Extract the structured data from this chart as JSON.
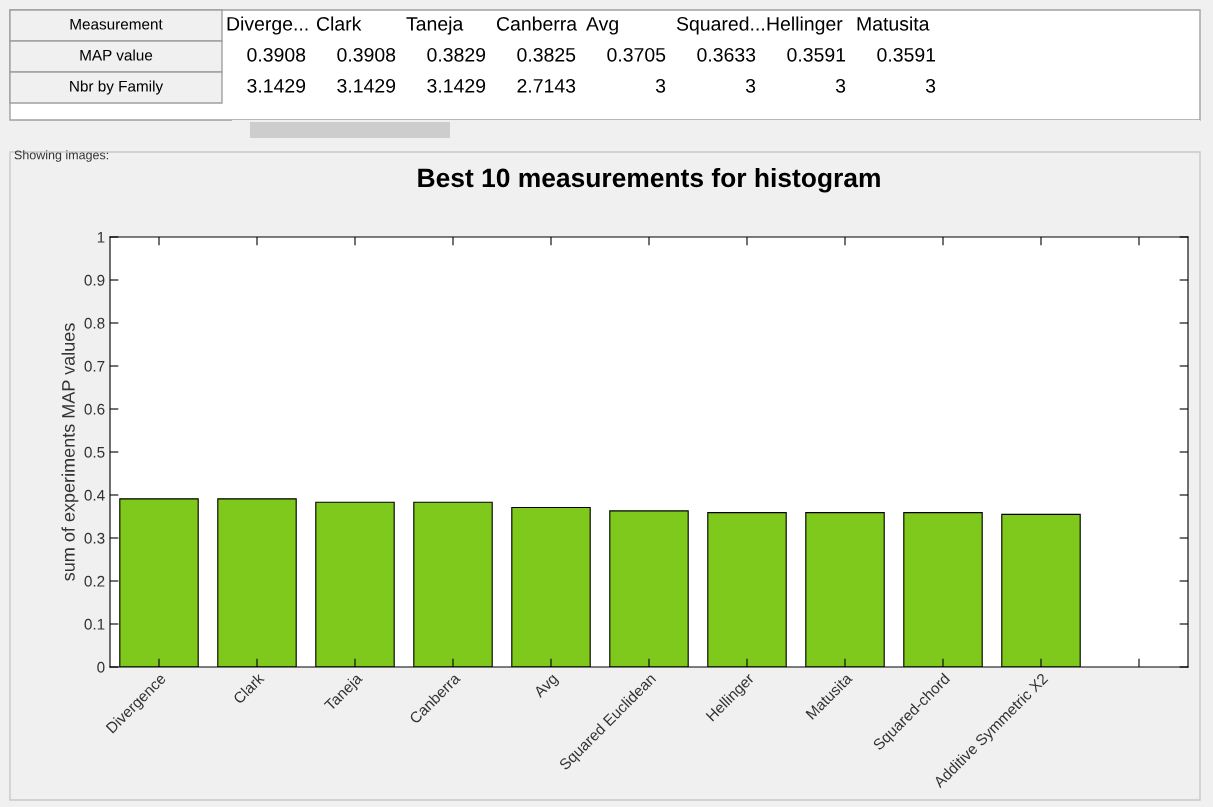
{
  "chart_data": [
    {
      "type": "other",
      "annotations": [
        "Measurement",
        "Diverge...",
        "Clark",
        "Taneja",
        "Canberra",
        "Avg",
        "Squared...",
        "Hellinger",
        "Matusita",
        "MAP value",
        "0.3908",
        "0.3908",
        "0.3829",
        "0.3825",
        "0.3705",
        "0.3633",
        "0.3591",
        "0.3591",
        "Nbr by Family",
        "3.1429",
        "3.1429",
        "3.1429",
        "2.7143",
        "3",
        "3",
        "3",
        "3"
      ]
    },
    {
      "type": "bar",
      "title": "Best 10 measurements for histogram",
      "ylabel": "sum of experiments MAP values",
      "categories": [
        "Divergence",
        "Clark",
        "Taneja",
        "Canberra",
        "Avg",
        "Squared Euclidean",
        "Hellinger",
        "Matusita",
        "Squared-chord",
        "Additive Symmetric X2",
        null
      ],
      "values": [
        0.391,
        0.391,
        0.383,
        0.383,
        0.371,
        0.363,
        0.359,
        0.359,
        0.359,
        0.355,
        null
      ],
      "color": "#7ec91b",
      "ylim": [
        0,
        1
      ],
      "yticks": [
        0,
        0.1,
        0.2,
        0.3,
        0.4,
        0.5,
        0.6,
        0.7,
        0.8,
        0.9,
        1
      ],
      "grid": false,
      "annotations": [
        "Showing images:"
      ]
    }
  ]
}
